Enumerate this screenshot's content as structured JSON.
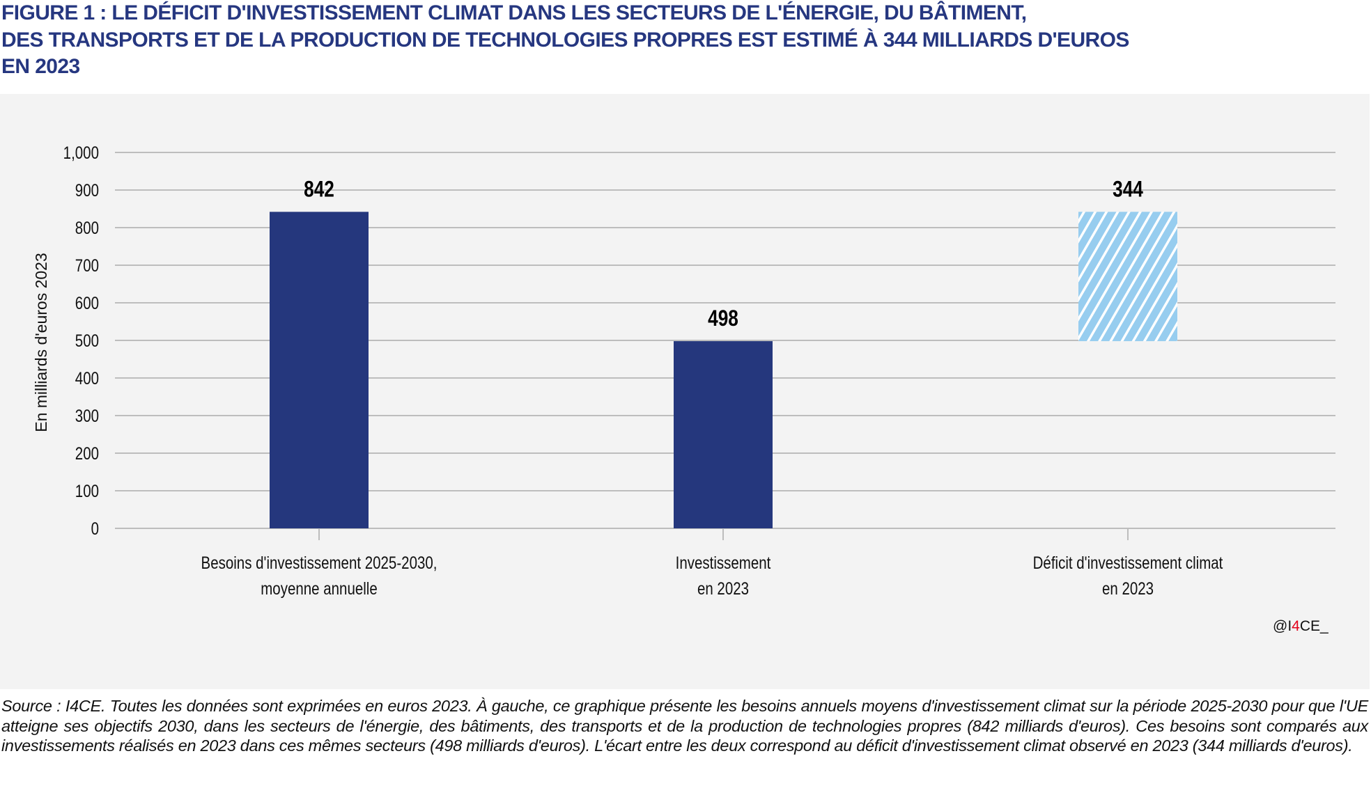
{
  "figure": {
    "title_lines": [
      "FIGURE 1 : LE DÉFICIT D'INVESTISSEMENT CLIMAT DANS LES SECTEURS DE L'ÉNERGIE, DU BÂTIMENT,",
      "DES TRANSPORTS ET DE LA PRODUCTION DE TECHNOLOGIES PROPRES EST ESTIMÉ À 344 MILLIARDS D'EUROS",
      "EN 2023"
    ],
    "brand": {
      "prefix": "@I",
      "highlight": "4",
      "suffix": "CE_"
    },
    "source": "Source : I4CE. Toutes les données sont exprimées en euros 2023. À gauche, ce graphique présente les besoins annuels moyens d'investissement climat sur la période 2025-2030 pour que l'UE atteigne ses objectifs 2030, dans les secteurs de l'énergie, des bâtiments, des transports et de la production de technologies propres (842 milliards d'euros). Ces besoins sont comparés aux investissements réalisés en 2023 dans ces mêmes secteurs (498 milliards d'euros). L'écart entre les deux correspond au déficit d'investissement climat observé en 2023 (344 milliards d'euros).",
    "colors": {
      "title": "#263780",
      "bar": "#25377d",
      "gap_fill": "#97cdef",
      "gap_stripe": "#ffffff",
      "brand_accent": "#e3001b",
      "panel": "#f3f3f3",
      "grid": "#bdbdbd"
    }
  },
  "chart_data": {
    "type": "bar",
    "title": "Le déficit d'investissement climat dans les secteurs de l'énergie, du bâtiment, des transports et de la production de technologies propres est estimé à 344 milliards d'euros en 2023",
    "xlabel": "",
    "ylabel": "En milliards d'euros 2023",
    "ylim": [
      0,
      1000
    ],
    "yticks": [
      0,
      100,
      200,
      300,
      400,
      500,
      600,
      700,
      800,
      900,
      1000
    ],
    "ytick_labels": [
      "0",
      "100",
      "200",
      "300",
      "400",
      "500",
      "600",
      "700",
      "800",
      "900",
      "1,000"
    ],
    "grid": true,
    "legend": "none",
    "categories": [
      [
        "Besoins d'investissement 2025-2030,",
        "moyenne annuelle"
      ],
      [
        "Investissement",
        "en 2023"
      ],
      [
        "Déficit d'investissement climat",
        "en 2023"
      ]
    ],
    "bars": [
      {
        "value": 842,
        "base": 0,
        "label": "842",
        "style": "solid"
      },
      {
        "value": 498,
        "base": 0,
        "label": "498",
        "style": "solid"
      },
      {
        "value": 344,
        "base": 498,
        "label": "344",
        "style": "hatched"
      }
    ]
  }
}
